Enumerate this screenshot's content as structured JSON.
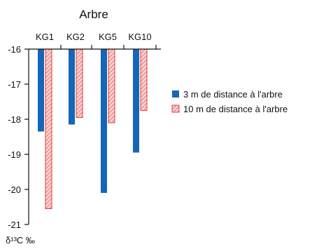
{
  "chart_data": {
    "type": "bar",
    "title": "Arbre",
    "ylabel": "δ¹³C ‰",
    "xlabel": "",
    "categories": [
      "KG1",
      "KG2",
      "KG5",
      "KG10"
    ],
    "yticks": [
      "-16",
      "-17",
      "-18",
      "-19",
      "-20",
      "-21"
    ],
    "ylim": [
      -21,
      -16
    ],
    "axis_position": "top",
    "y_inverted": true,
    "series": [
      {
        "name": "3 m de distance à l'arbre",
        "values": [
          -18.35,
          -18.15,
          -20.1,
          -18.95
        ],
        "color": "#1565b8",
        "pattern": "solid"
      },
      {
        "name": "10 m de distance à l'arbre",
        "values": [
          -20.55,
          -17.95,
          -18.1,
          -17.75
        ],
        "color": "#e03a3a",
        "fill": "#f6c8c4",
        "pattern": "hatch"
      }
    ],
    "legend_position": "right",
    "grid": false
  }
}
